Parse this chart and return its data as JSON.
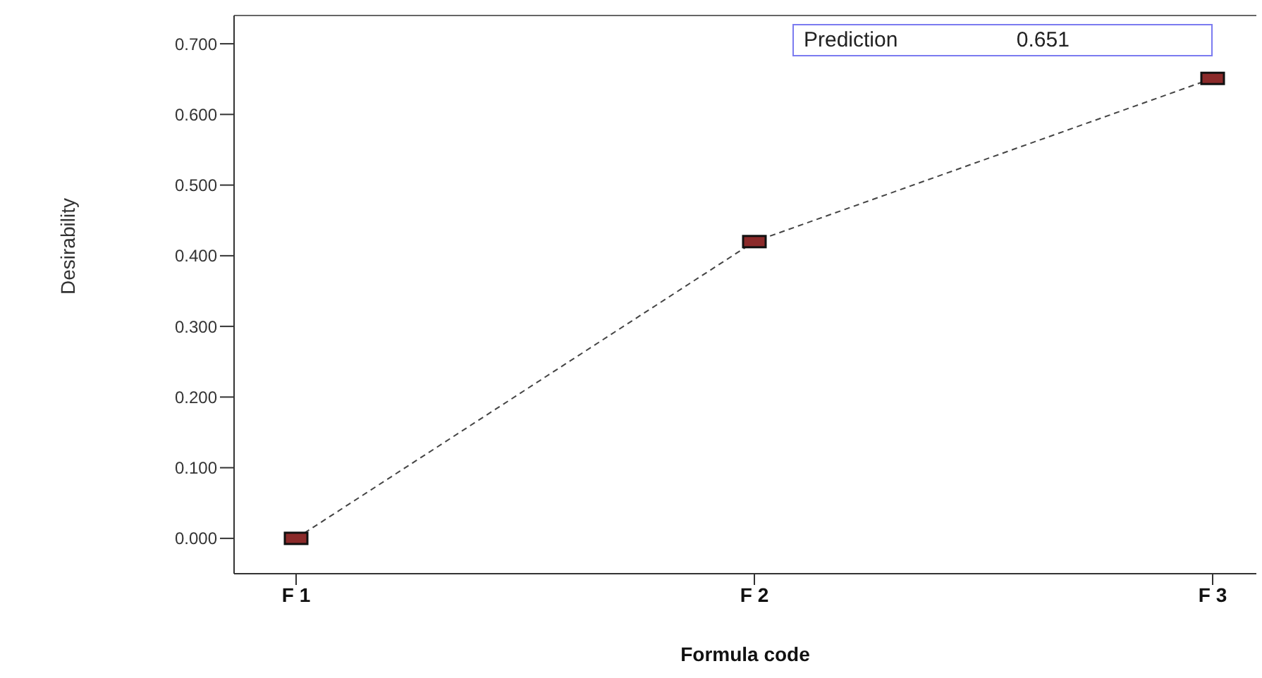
{
  "chart_data": {
    "type": "line",
    "xlabel": "Formula code",
    "ylabel": "Desirability",
    "categories": [
      "F 1",
      "F 2",
      "F 3"
    ],
    "series": [
      {
        "color": "#8b2a2a",
        "values": [
          0,
          0.42,
          0.651
        ]
      }
    ],
    "ylim": [
      -0.05,
      0.74
    ],
    "yticks": [
      {
        "value": 0,
        "label": "0.000"
      },
      {
        "value": 0.1,
        "label": "0.100"
      },
      {
        "value": 0.2,
        "label": "0.200"
      },
      {
        "value": 0.3,
        "label": "0.300"
      },
      {
        "value": 0.4,
        "label": "0.400"
      },
      {
        "value": 0.5,
        "label": "0.500"
      },
      {
        "value": 0.6,
        "label": "0.600"
      },
      {
        "value": 0.7,
        "label": "0.700"
      }
    ],
    "annotations": [
      "Prediction 0.651"
    ],
    "marker": "square",
    "line_style": "dashed",
    "grid": false
  }
}
